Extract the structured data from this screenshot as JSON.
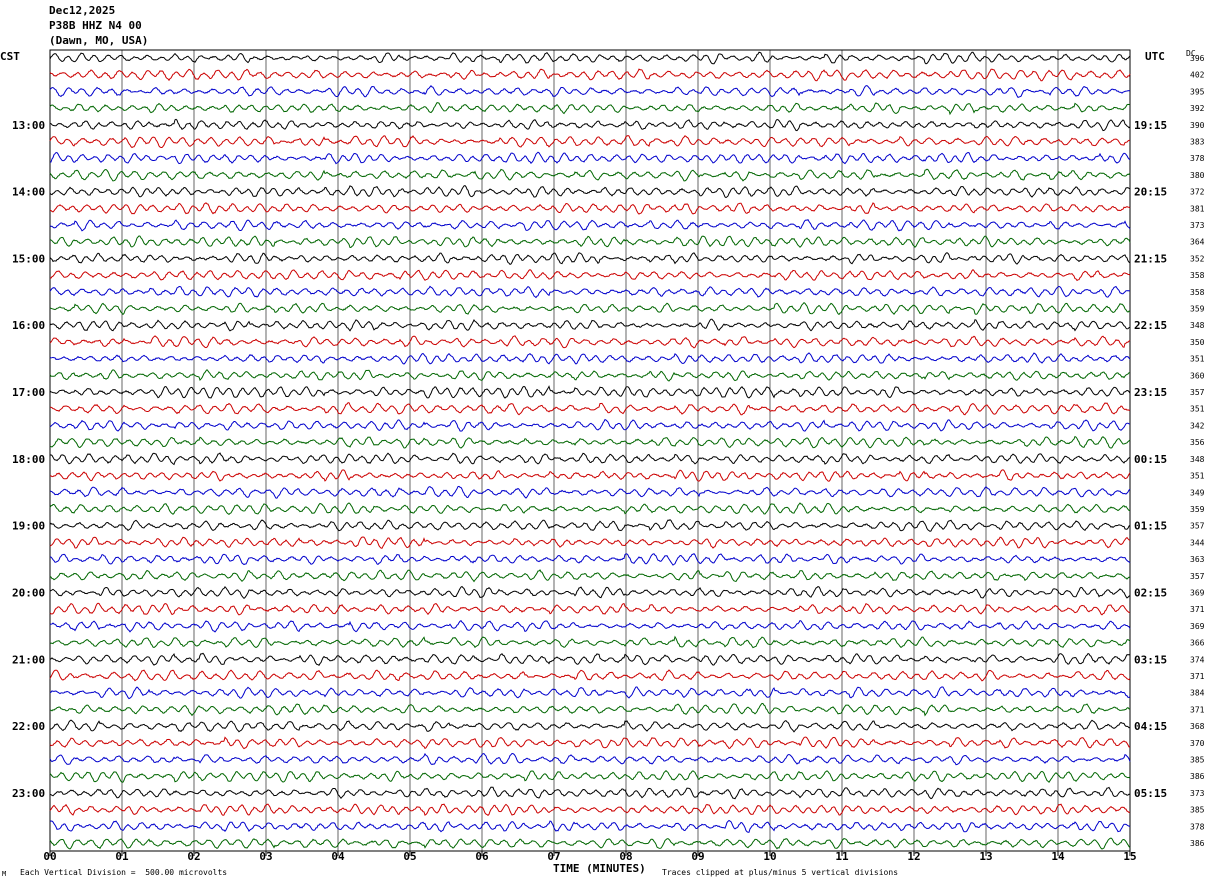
{
  "header": {
    "date": "Dec12,2025",
    "station": "P38B HHZ N4 00",
    "location": "(Dawn, MO, USA)"
  },
  "left_axis_title": "CST",
  "right_axis_title": "UTC",
  "dc_label": "DC",
  "footer": {
    "scale_note": "Each Vertical Division =  500.00 microvolts",
    "clip_note": "Traces clipped at plus/minus 5 vertical divisions",
    "corner_mark": "M"
  },
  "colors": {
    "trace_cycle": [
      "#000000",
      "#cc0000",
      "#0000cc",
      "#006600"
    ],
    "grid": "#000000"
  },
  "chart_data": {
    "type": "line",
    "title": "",
    "xlabel": "TIME (MINUTES)",
    "ylabel": "",
    "xlim": [
      0,
      15
    ],
    "x_ticks": [
      "00",
      "01",
      "02",
      "03",
      "04",
      "05",
      "06",
      "07",
      "08",
      "09",
      "10",
      "11",
      "12",
      "13",
      "14",
      "15"
    ],
    "traces_per_hour": 4,
    "cst_labels": [
      "13:00",
      "14:00",
      "15:00",
      "16:00",
      "17:00",
      "18:00",
      "19:00",
      "20:00",
      "21:00",
      "22:00",
      "23:00"
    ],
    "utc_labels": [
      "19:15",
      "20:15",
      "21:15",
      "22:15",
      "23:15",
      "00:15",
      "01:15",
      "02:15",
      "03:15",
      "04:15",
      "05:15"
    ],
    "dc_offsets": [
      396,
      402,
      395,
      392,
      390,
      383,
      378,
      380,
      372,
      381,
      373,
      364,
      352,
      358,
      358,
      359,
      348,
      350,
      351,
      360,
      357,
      351,
      342,
      356,
      348,
      351,
      349,
      359,
      357,
      344,
      363,
      357,
      369,
      371,
      369,
      366,
      374,
      371,
      384,
      371,
      368,
      370,
      385,
      386,
      373,
      385,
      378,
      386
    ]
  }
}
